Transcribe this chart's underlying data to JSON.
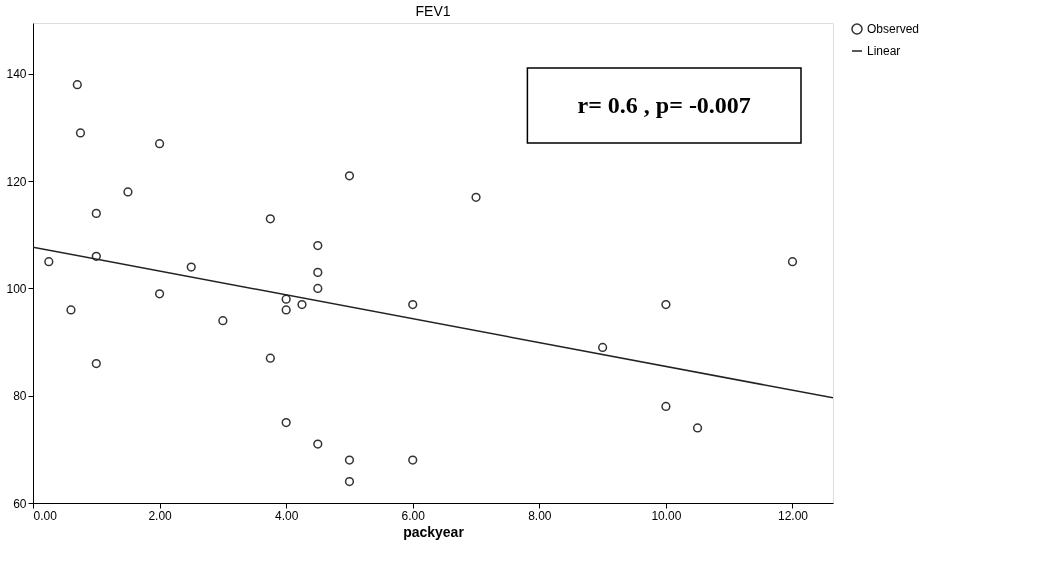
{
  "chart_data": {
    "type": "scatter",
    "title": "FEV1",
    "xlabel": "packyear",
    "annotations": [
      "r= 0.6  , p= -0.007"
    ],
    "xlim": [
      0,
      12.64
    ],
    "ylim": [
      60,
      149.5
    ],
    "xticks": [
      {
        "value": 0,
        "label": "0.00"
      },
      {
        "value": 2,
        "label": "2.00"
      },
      {
        "value": 4,
        "label": "4.00"
      },
      {
        "value": 6,
        "label": "6.00"
      },
      {
        "value": 8,
        "label": "8.00"
      },
      {
        "value": 10,
        "label": "10.00"
      },
      {
        "value": 12,
        "label": "12.00"
      }
    ],
    "yticks": [
      60,
      80,
      100,
      120,
      140
    ],
    "grid": false,
    "legend": "top right",
    "marker": "circle",
    "series": [
      {
        "name": "Observed",
        "color": "#333333",
        "x": [
          0.7,
          0.75,
          2.0,
          5.0,
          1.5,
          1.0,
          3.75,
          4.5,
          1.0,
          0.25,
          2.5,
          4.5,
          4.5,
          2.0,
          4.0,
          4.25,
          6.0,
          0.6,
          4.0,
          3.0,
          3.75,
          1.0,
          4.0,
          4.5,
          5.0,
          6.0,
          5.0,
          7.0,
          12.0,
          10.0,
          9.0,
          10.0,
          10.5
        ],
        "values": [
          138,
          129,
          127,
          121,
          118,
          114,
          113,
          108,
          106,
          105,
          104,
          103,
          100,
          99,
          98,
          97,
          97,
          96,
          96,
          94,
          87,
          86,
          75,
          71,
          68,
          68,
          64,
          117,
          105,
          97,
          89,
          78,
          74
        ]
      },
      {
        "name": "Linear",
        "type": "line",
        "marker": "none",
        "line_style": "solid",
        "color": "#222222",
        "x": [
          0,
          12.64
        ],
        "values": [
          107.7,
          79.6
        ]
      }
    ]
  }
}
